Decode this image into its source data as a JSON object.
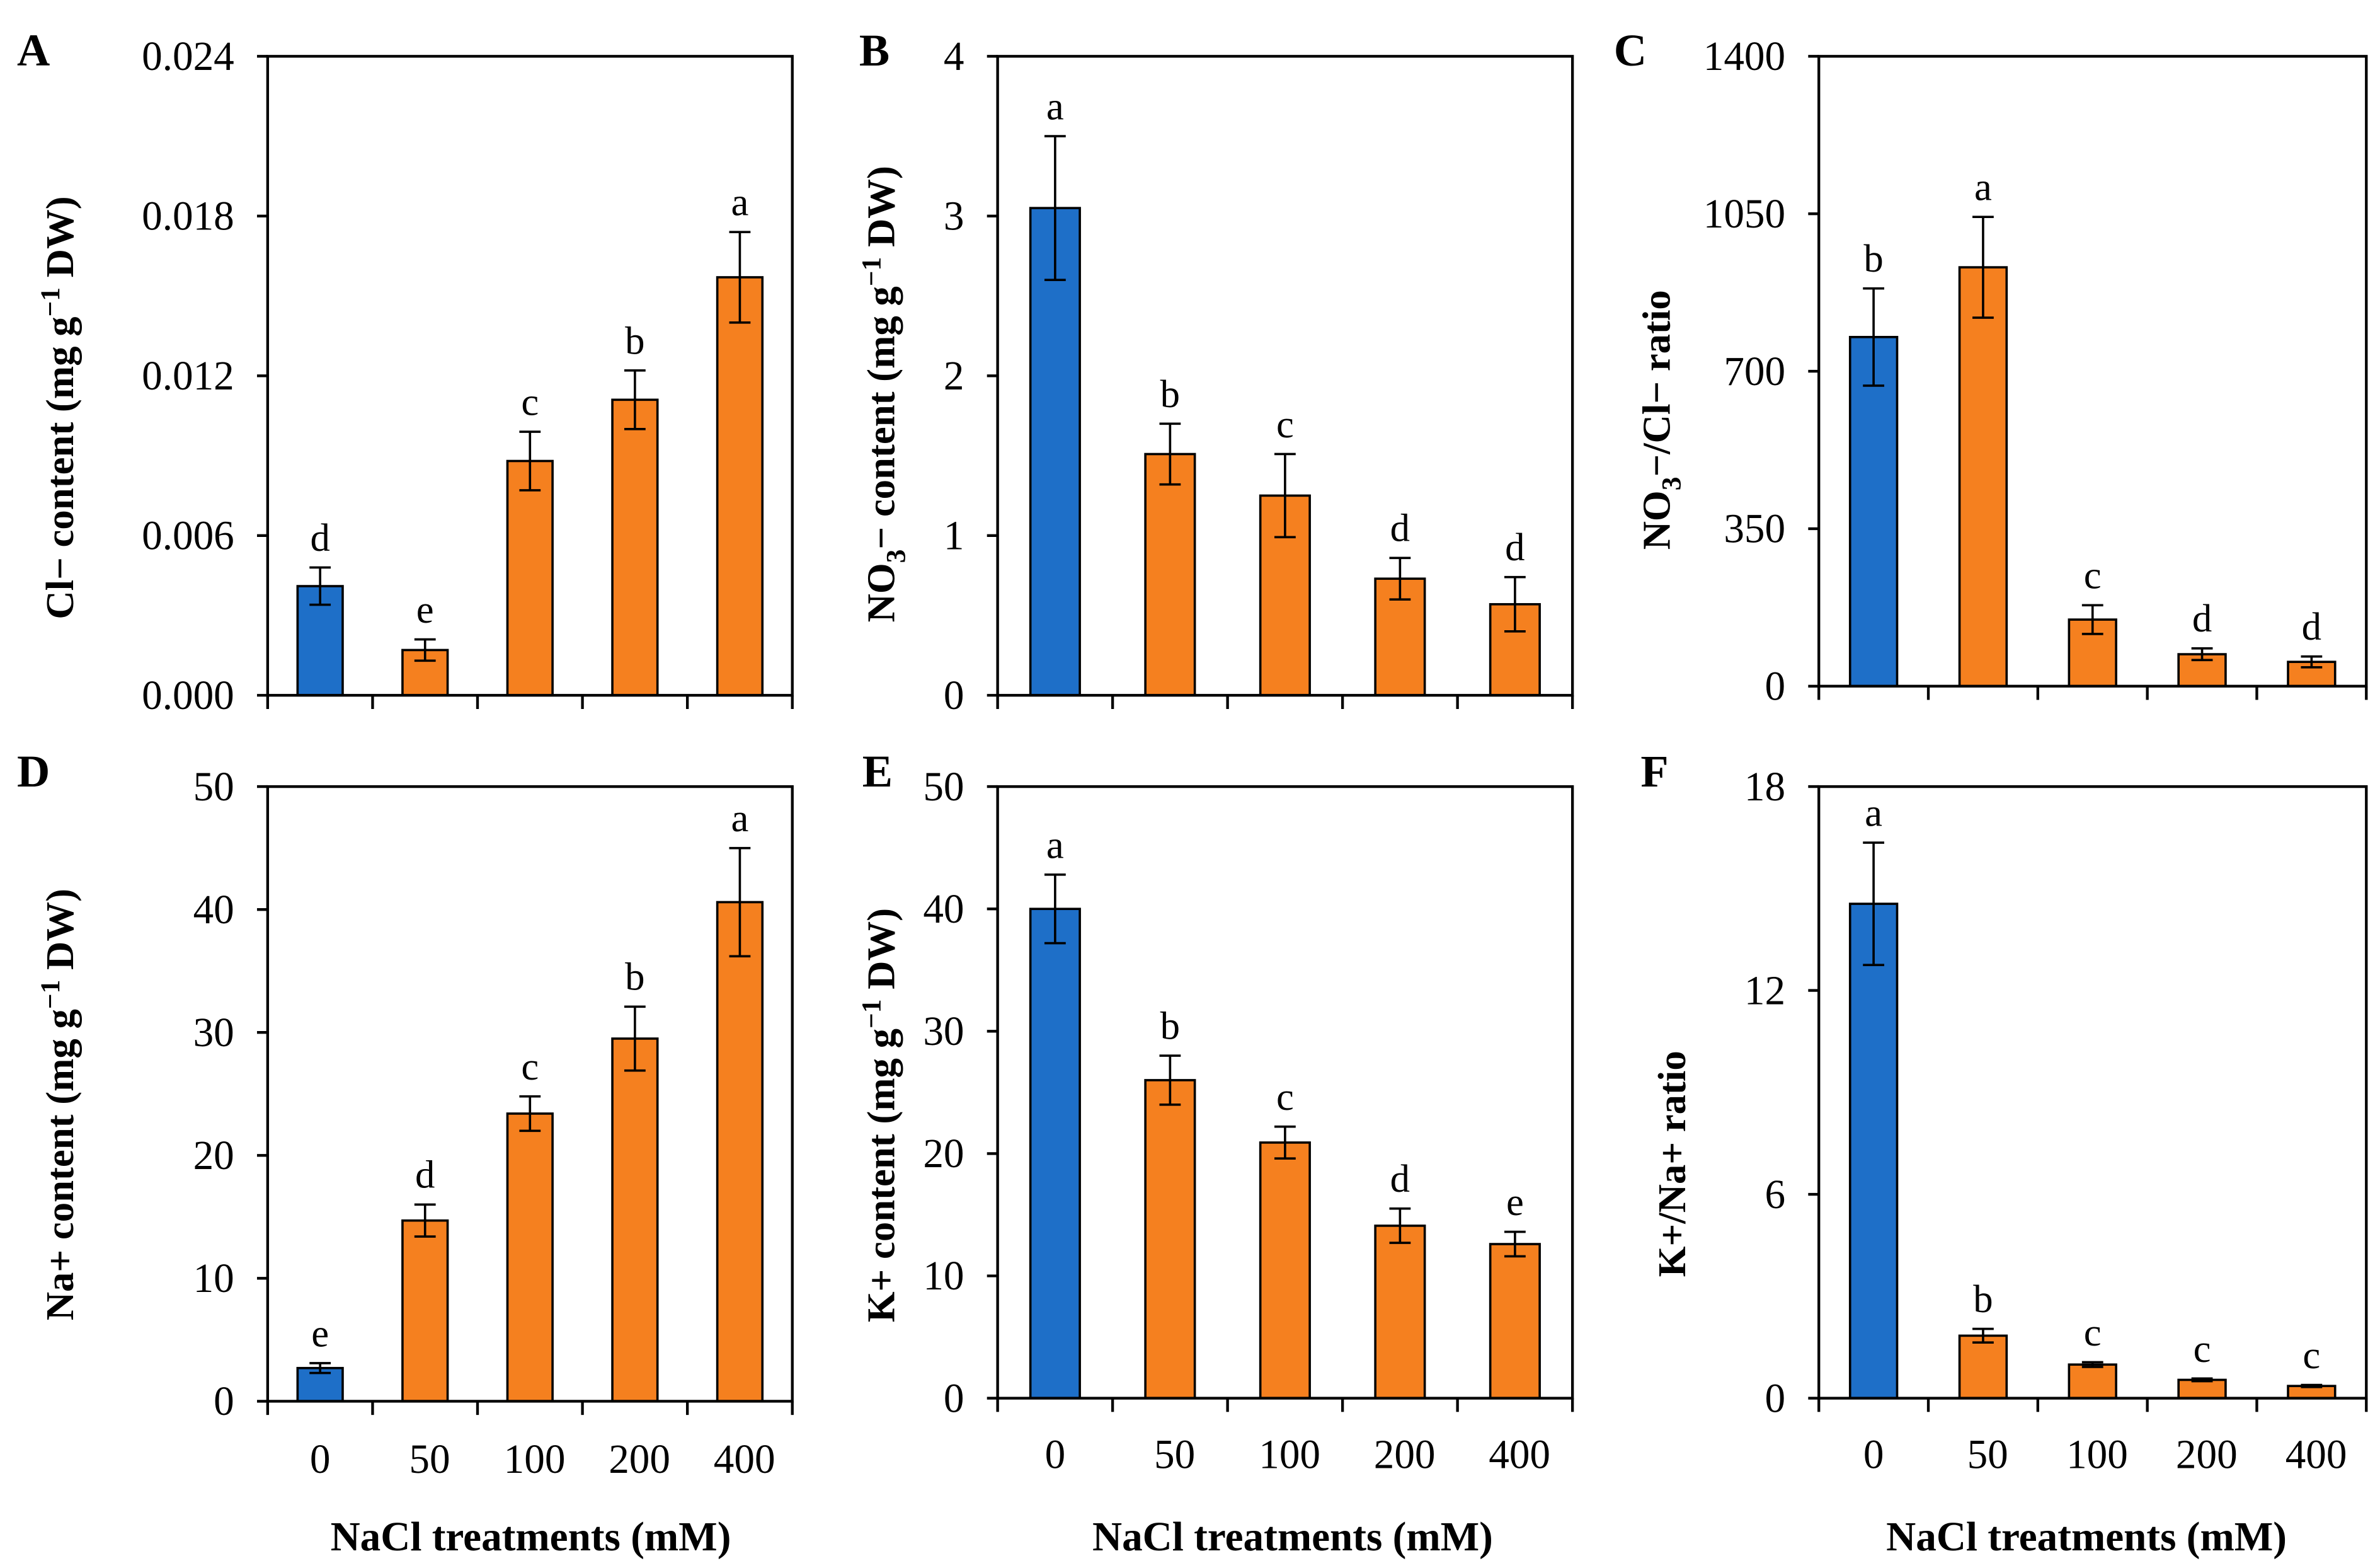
{
  "colors": {
    "control_bar": "#1E6FC8",
    "nacl_bar": "#F5801F",
    "axis": "#000000"
  },
  "chart_data": [
    {
      "panel": "A",
      "type": "bar",
      "categories": [
        "0",
        "50",
        "100",
        "200",
        "400"
      ],
      "values": [
        0.0041,
        0.0017,
        0.0088,
        0.0111,
        0.0157
      ],
      "errors": [
        0.0007,
        0.0004,
        0.0011,
        0.0011,
        0.0017
      ],
      "letters": [
        "d",
        "e",
        "c",
        "b",
        "a"
      ],
      "bar_colors": [
        "#1E6FC8",
        "#F5801F",
        "#F5801F",
        "#F5801F",
        "#F5801F"
      ],
      "ylabel": [
        {
          "text": "Cl− content (mg g"
        },
        {
          "text": "−1",
          "sup": true
        },
        {
          "text": " DW)"
        }
      ],
      "ylim": [
        0,
        0.024
      ],
      "yticks": [
        0,
        0.006,
        0.012,
        0.018,
        0.024
      ],
      "ytick_labels": [
        "0.000",
        "0.006",
        "0.012",
        "0.018",
        "0.024"
      ],
      "show_xtick_labels": false
    },
    {
      "panel": "B",
      "type": "bar",
      "categories": [
        "0",
        "50",
        "100",
        "200",
        "400"
      ],
      "values": [
        3.05,
        1.51,
        1.25,
        0.73,
        0.57
      ],
      "errors": [
        0.45,
        0.19,
        0.26,
        0.13,
        0.17
      ],
      "letters": [
        "a",
        "b",
        "c",
        "d",
        "d"
      ],
      "bar_colors": [
        "#1E6FC8",
        "#F5801F",
        "#F5801F",
        "#F5801F",
        "#F5801F"
      ],
      "ylabel": [
        {
          "text": "NO"
        },
        {
          "text": "3",
          "sub": true
        },
        {
          "text": "− content (mg g"
        },
        {
          "text": "−1",
          "sup": true
        },
        {
          "text": " DW)"
        }
      ],
      "ylim": [
        0,
        4
      ],
      "yticks": [
        0,
        1,
        2,
        3,
        4
      ],
      "ytick_labels": [
        "0",
        "1",
        "2",
        "3",
        "4"
      ],
      "show_xtick_labels": false
    },
    {
      "panel": "C",
      "type": "bar",
      "categories": [
        "0",
        "50",
        "100",
        "200",
        "400"
      ],
      "values": [
        776,
        931,
        148,
        71,
        54
      ],
      "errors": [
        108,
        112,
        32,
        13,
        12
      ],
      "letters": [
        "b",
        "a",
        "c",
        "d",
        "d"
      ],
      "bar_colors": [
        "#1E6FC8",
        "#F5801F",
        "#F5801F",
        "#F5801F",
        "#F5801F"
      ],
      "ylabel": [
        {
          "text": "NO"
        },
        {
          "text": "3",
          "sub": true
        },
        {
          "text": "−/Cl− ratio"
        }
      ],
      "ylim": [
        0,
        1400
      ],
      "yticks": [
        0,
        350,
        700,
        1050,
        1400
      ],
      "ytick_labels": [
        "0",
        "350",
        "700",
        "1050",
        "1400"
      ],
      "show_xtick_labels": false
    },
    {
      "panel": "D",
      "type": "bar",
      "categories": [
        "0",
        "50",
        "100",
        "200",
        "400"
      ],
      "values": [
        2.7,
        14.7,
        23.4,
        29.5,
        40.6
      ],
      "errors": [
        0.4,
        1.3,
        1.4,
        2.6,
        4.4
      ],
      "letters": [
        "e",
        "d",
        "c",
        "b",
        "a"
      ],
      "bar_colors": [
        "#1E6FC8",
        "#F5801F",
        "#F5801F",
        "#F5801F",
        "#F5801F"
      ],
      "ylabel": [
        {
          "text": "Na+ content (mg g"
        },
        {
          "text": "−1",
          "sup": true
        },
        {
          "text": " DW)"
        }
      ],
      "xlabel": "NaCl treatments (mM)",
      "ylim": [
        0,
        50
      ],
      "yticks": [
        0,
        10,
        20,
        30,
        40,
        50
      ],
      "ytick_labels": [
        "0",
        "10",
        "20",
        "30",
        "40",
        "50"
      ],
      "show_xtick_labels": true
    },
    {
      "panel": "E",
      "type": "bar",
      "categories": [
        "0",
        "50",
        "100",
        "200",
        "400"
      ],
      "values": [
        40.0,
        26.0,
        20.9,
        14.1,
        12.6
      ],
      "errors": [
        2.8,
        2.0,
        1.3,
        1.4,
        1.0
      ],
      "letters": [
        "a",
        "b",
        "c",
        "d",
        "e"
      ],
      "bar_colors": [
        "#1E6FC8",
        "#F5801F",
        "#F5801F",
        "#F5801F",
        "#F5801F"
      ],
      "ylabel": [
        {
          "text": "K+ content (mg g"
        },
        {
          "text": "−1",
          "sup": true
        },
        {
          "text": " DW)"
        }
      ],
      "xlabel": "NaCl treatments (mM)",
      "ylim": [
        0,
        50
      ],
      "yticks": [
        0,
        10,
        20,
        30,
        40,
        50
      ],
      "ytick_labels": [
        "0",
        "10",
        "20",
        "30",
        "40",
        "50"
      ],
      "show_xtick_labels": true
    },
    {
      "panel": "F",
      "type": "bar",
      "categories": [
        "0",
        "50",
        "100",
        "200",
        "400"
      ],
      "values": [
        14.55,
        1.84,
        0.99,
        0.54,
        0.36
      ],
      "errors": [
        1.8,
        0.2,
        0.07,
        0.04,
        0.03
      ],
      "letters": [
        "a",
        "b",
        "c",
        "c",
        "c"
      ],
      "bar_colors": [
        "#1E6FC8",
        "#F5801F",
        "#F5801F",
        "#F5801F",
        "#F5801F"
      ],
      "ylabel": [
        {
          "text": "K+/Na+ ratio"
        }
      ],
      "xlabel": "NaCl treatments (mM)",
      "ylim": [
        0,
        18
      ],
      "yticks": [
        0,
        6,
        12,
        18
      ],
      "ytick_labels": [
        "0",
        "6",
        "12",
        "18"
      ],
      "show_xtick_labels": true
    }
  ]
}
